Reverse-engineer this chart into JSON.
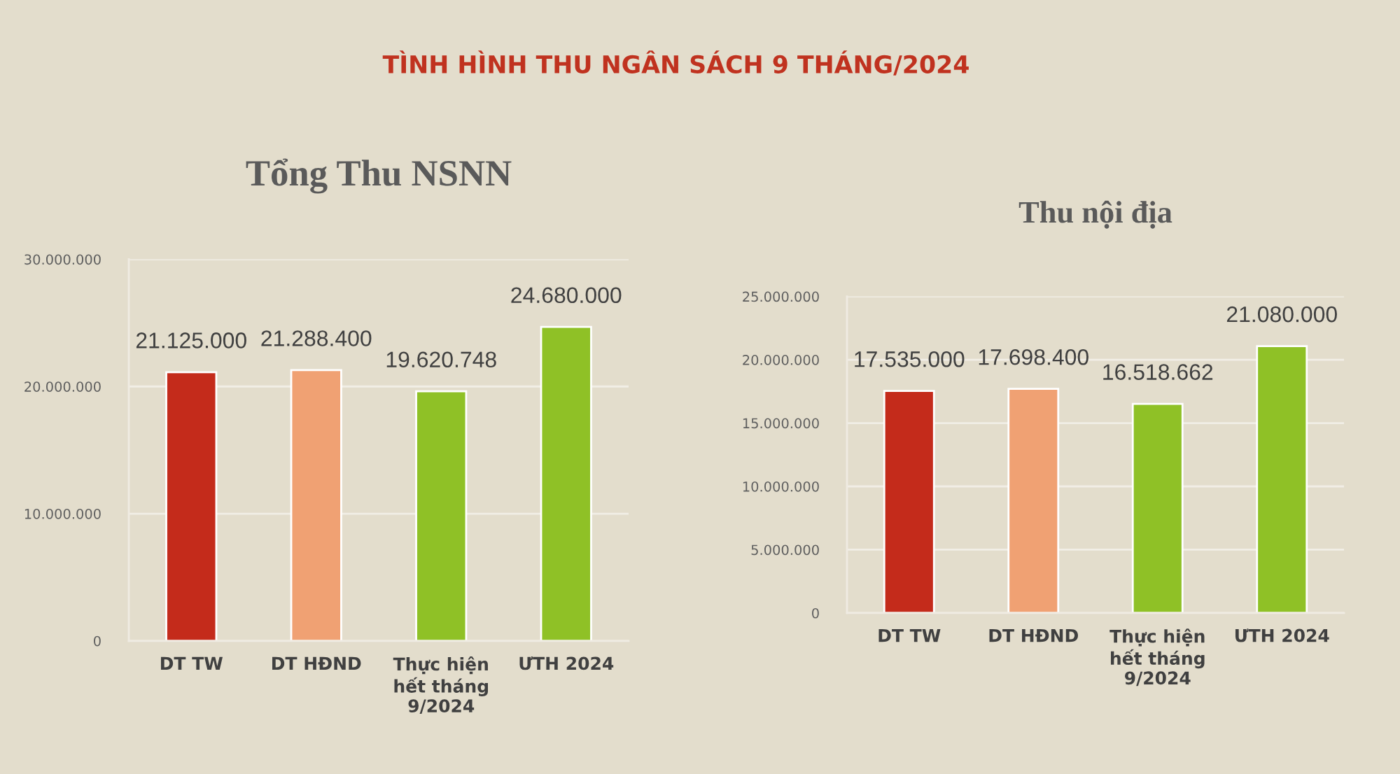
{
  "chart_data": [
    {
      "type": "bar",
      "title": "Tổng Thu NSNN",
      "annotations": [
        "TÌNH HÌNH THU NGÂN SÁCH 9 THÁNG/2024"
      ],
      "categories": [
        "DT TW",
        "DT HĐND",
        "Thực hiện\nhết tháng\n9/2024",
        "ƯTH 2024"
      ],
      "values": [
        21125000,
        21288400,
        19620748,
        24680000
      ],
      "colors": [
        "#c42b1b",
        "#f0a173",
        "#8fc126",
        "#8fc126"
      ],
      "value_labels": [
        "21.125.000",
        "21.288.400",
        "19.620.748",
        "24.680.000"
      ],
      "ylim": [
        0,
        30000000
      ],
      "yticks": [
        0,
        {
          "value": 10000000,
          "label": "10.000.000"
        },
        {
          "value": 20000000,
          "label": "20.000.000"
        },
        {
          "value": 30000000,
          "label": "30.000.000"
        }
      ],
      "grid": "y"
    },
    {
      "type": "bar",
      "title": "Thu nội địa",
      "categories": [
        "DT TW",
        "DT HĐND",
        "Thực hiện\nhết tháng\n9/2024",
        "ƯTH 2024"
      ],
      "values": [
        17535000,
        17698400,
        16518662,
        21080000
      ],
      "colors": [
        "#c42b1b",
        "#f0a173",
        "#8fc126",
        "#8fc126"
      ],
      "value_labels": [
        "17.535.000",
        "17.698.400",
        "16.518.662",
        "21.080.000"
      ],
      "ylim": [
        0,
        25000000
      ],
      "yticks": [
        0,
        {
          "value": 5000000,
          "label": "5.000.000"
        },
        {
          "value": 10000000,
          "label": "10.000.000"
        },
        {
          "value": 15000000,
          "label": "15.000.000"
        },
        {
          "value": 20000000,
          "label": "20.000.000"
        },
        {
          "value": 25000000,
          "label": "25.000.000"
        }
      ],
      "grid": "y"
    }
  ]
}
